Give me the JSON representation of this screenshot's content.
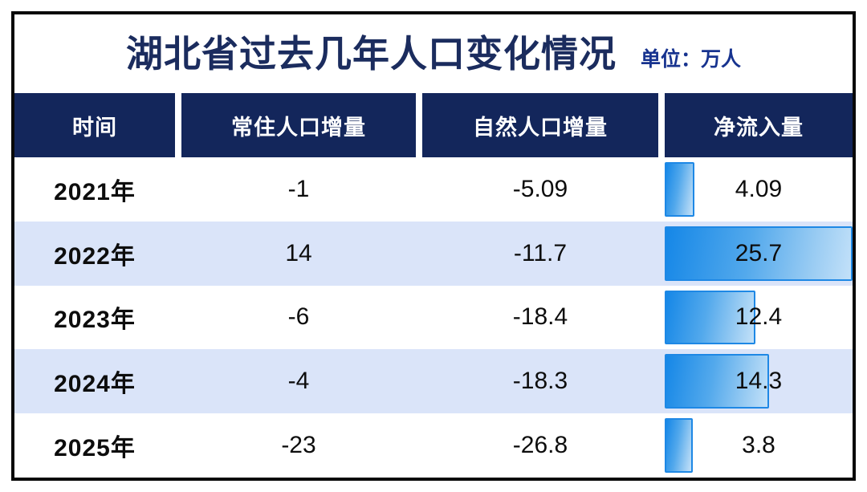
{
  "title": "湖北省过去几年人口变化情况",
  "unit_label": "单位：万人",
  "table": {
    "columns": [
      "时间",
      "常住人口增量",
      "自然人口增量",
      "净流入量"
    ],
    "rows": [
      {
        "year": "2021年",
        "resident": "-1",
        "natural": "-5.09",
        "net_inflow": "4.09"
      },
      {
        "year": "2022年",
        "resident": "14",
        "natural": "-11.7",
        "net_inflow": "25.7"
      },
      {
        "year": "2023年",
        "resident": "-6",
        "natural": "-18.4",
        "net_inflow": "12.4"
      },
      {
        "year": "2024年",
        "resident": "-4",
        "natural": "-18.3",
        "net_inflow": "14.3"
      },
      {
        "year": "2025年",
        "resident": "-23",
        "natural": "-26.8",
        "net_inflow": "3.8"
      }
    ]
  },
  "colors": {
    "title_navy": "#1b2c5e",
    "unit_blue": "#17338f",
    "header_navy": "#13265b",
    "row_alt_blue": "#dae4f9",
    "bar_border": "#1e88e5",
    "bar_gradient_start": "#1587e7",
    "bar_gradient_end": "#c3e1f9",
    "frame_border": "#090909"
  },
  "chart_data": {
    "type": "table",
    "title": "湖北省过去几年人口变化情况",
    "unit": "万人",
    "columns": [
      "时间",
      "常住人口增量",
      "自然人口增量",
      "净流入量"
    ],
    "categories": [
      "2021年",
      "2022年",
      "2023年",
      "2024年",
      "2025年"
    ],
    "series": [
      {
        "name": "常住人口增量",
        "values": [
          -1,
          14,
          -6,
          -4,
          -23
        ]
      },
      {
        "name": "自然人口增量",
        "values": [
          -5.09,
          -11.7,
          -18.4,
          -18.3,
          -26.8
        ]
      },
      {
        "name": "净流入量",
        "values": [
          4.09,
          25.7,
          12.4,
          14.3,
          3.8
        ]
      }
    ],
    "bar_column": "净流入量",
    "bar_max": 25.7,
    "legend": false,
    "grid": false
  }
}
